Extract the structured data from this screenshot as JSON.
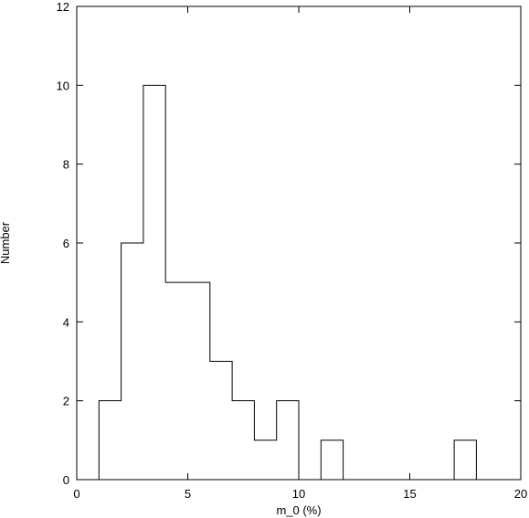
{
  "chart_data": {
    "type": "bar",
    "subtype": "histogram",
    "xlabel": "m_0 (%)",
    "ylabel": "Number",
    "xlim": [
      0,
      20
    ],
    "ylim": [
      0,
      12
    ],
    "xticks": [
      0,
      5,
      10,
      15,
      20
    ],
    "yticks": [
      0,
      2,
      4,
      6,
      8,
      10,
      12
    ],
    "grid": false,
    "bins": [
      {
        "x0": 1,
        "x1": 2,
        "count": 2
      },
      {
        "x0": 2,
        "x1": 3,
        "count": 6
      },
      {
        "x0": 3,
        "x1": 4,
        "count": 10
      },
      {
        "x0": 4,
        "x1": 5,
        "count": 5
      },
      {
        "x0": 5,
        "x1": 6,
        "count": 5
      },
      {
        "x0": 6,
        "x1": 7,
        "count": 3
      },
      {
        "x0": 7,
        "x1": 8,
        "count": 2
      },
      {
        "x0": 8,
        "x1": 9,
        "count": 1
      },
      {
        "x0": 9,
        "x1": 10,
        "count": 2
      },
      {
        "x0": 10,
        "x1": 11,
        "count": 0
      },
      {
        "x0": 11,
        "x1": 12,
        "count": 1
      },
      {
        "x0": 12,
        "x1": 13,
        "count": 0
      },
      {
        "x0": 13,
        "x1": 14,
        "count": 0
      },
      {
        "x0": 14,
        "x1": 15,
        "count": 0
      },
      {
        "x0": 15,
        "x1": 16,
        "count": 0
      },
      {
        "x0": 16,
        "x1": 17,
        "count": 0
      },
      {
        "x0": 17,
        "x1": 18,
        "count": 1
      }
    ],
    "colors": {
      "line": "#000000",
      "background": "#ffffff"
    }
  }
}
